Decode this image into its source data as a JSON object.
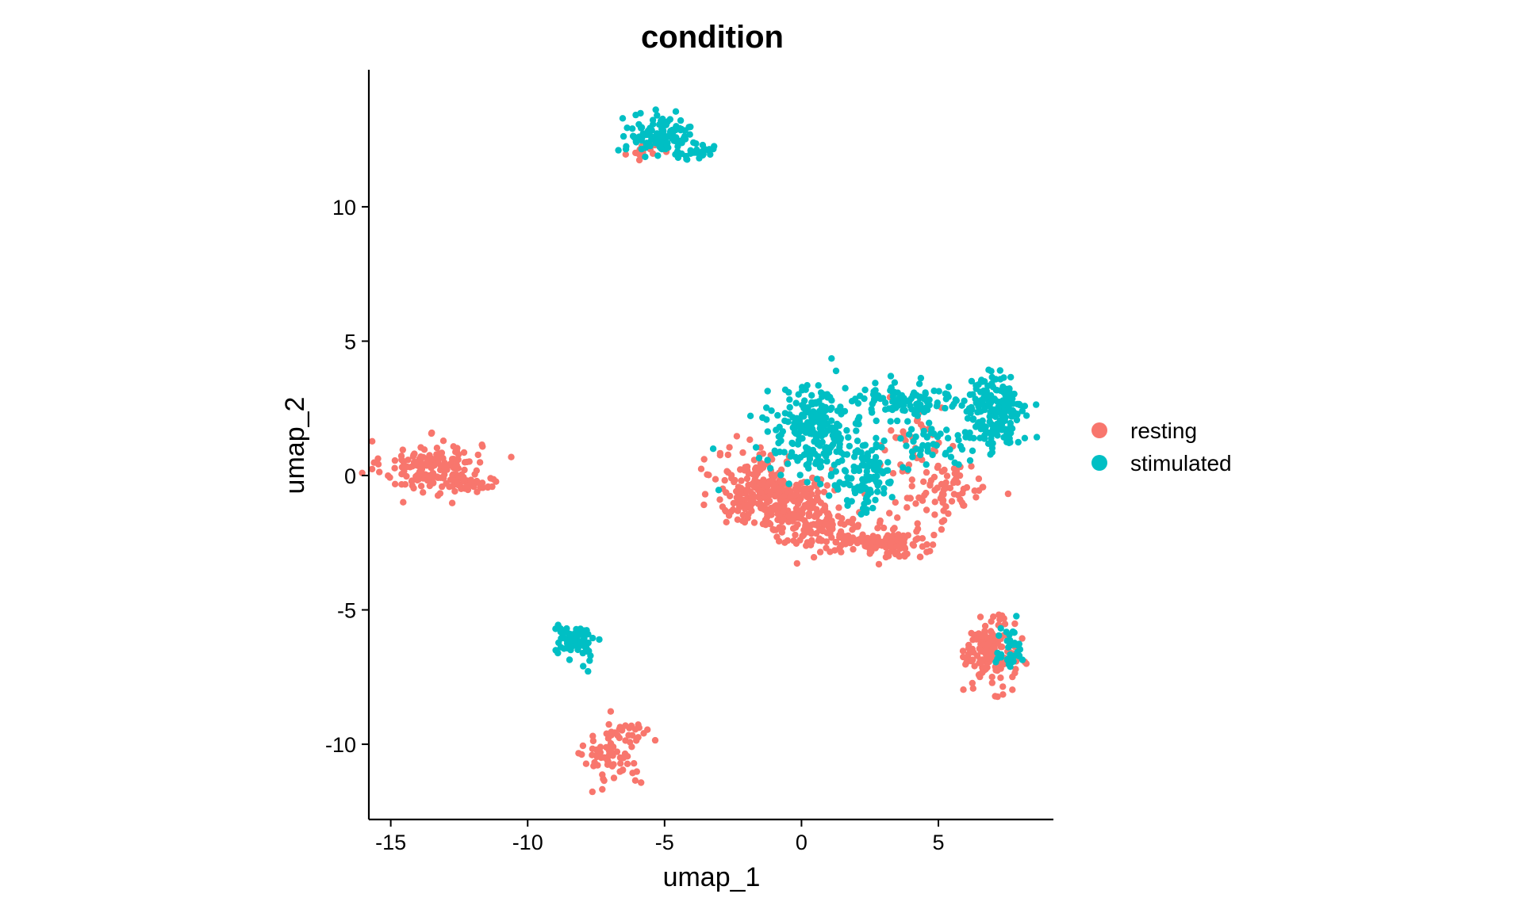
{
  "chart_data": {
    "type": "scatter",
    "title": "condition",
    "xlabel": "umap_1",
    "ylabel": "umap_2",
    "xlim": [
      -15.8,
      9.2
    ],
    "ylim": [
      -12.8,
      15.1
    ],
    "x_ticks": [
      -15,
      -10,
      -5,
      0,
      5
    ],
    "y_ticks": [
      -10,
      -5,
      0,
      5,
      10
    ],
    "x_tick_labels": [
      "-15",
      "-10",
      "-5",
      "0",
      "5"
    ],
    "y_tick_labels": [
      "-10",
      "-5",
      "0",
      "5",
      "10"
    ],
    "grid": false,
    "legend_position": "right",
    "legend": [
      {
        "name": "resting",
        "color": "#F8766D"
      },
      {
        "name": "stimulated",
        "color": "#00BFC4"
      }
    ],
    "series": [
      {
        "name": "resting",
        "color": "#F8766D",
        "clusters": [
          {
            "cx": -13.5,
            "cy": 0.3,
            "sx": 0.9,
            "sy": 0.5,
            "n": 170
          },
          {
            "cx": -12.0,
            "cy": -0.3,
            "sx": 0.5,
            "sy": 0.15,
            "n": 25
          },
          {
            "cx": -6.9,
            "cy": -10.4,
            "sx": 0.5,
            "sy": 0.6,
            "n": 70
          },
          {
            "cx": -6.0,
            "cy": -9.6,
            "sx": 0.3,
            "sy": 0.25,
            "n": 15
          },
          {
            "cx": -5.7,
            "cy": 12.0,
            "sx": 0.3,
            "sy": 0.15,
            "n": 15
          },
          {
            "cx": -1.5,
            "cy": -0.5,
            "sx": 0.8,
            "sy": 0.7,
            "n": 220
          },
          {
            "cx": 0.0,
            "cy": -1.3,
            "sx": 0.8,
            "sy": 0.6,
            "n": 170
          },
          {
            "cx": 2.0,
            "cy": -2.3,
            "sx": 1.0,
            "sy": 0.3,
            "n": 100
          },
          {
            "cx": 3.5,
            "cy": -2.6,
            "sx": 0.7,
            "sy": 0.25,
            "n": 60
          },
          {
            "cx": 5.2,
            "cy": -0.6,
            "sx": 0.9,
            "sy": 0.6,
            "n": 80
          },
          {
            "cx": 4.0,
            "cy": 1.2,
            "sx": 0.6,
            "sy": 0.7,
            "n": 30
          },
          {
            "cx": 6.9,
            "cy": -6.6,
            "sx": 0.45,
            "sy": 0.6,
            "n": 160
          }
        ]
      },
      {
        "name": "stimulated",
        "color": "#00BFC4",
        "clusters": [
          {
            "cx": -5.2,
            "cy": 12.7,
            "sx": 0.6,
            "sy": 0.35,
            "n": 120
          },
          {
            "cx": -3.8,
            "cy": 12.0,
            "sx": 0.4,
            "sy": 0.15,
            "n": 25
          },
          {
            "cx": -8.3,
            "cy": -6.1,
            "sx": 0.35,
            "sy": 0.25,
            "n": 75
          },
          {
            "cx": -7.9,
            "cy": -7.0,
            "sx": 0.1,
            "sy": 0.3,
            "n": 8
          },
          {
            "cx": 0.5,
            "cy": 1.7,
            "sx": 0.9,
            "sy": 0.8,
            "n": 240
          },
          {
            "cx": 2.3,
            "cy": 0.0,
            "sx": 0.6,
            "sy": 0.7,
            "n": 110
          },
          {
            "cx": 3.8,
            "cy": 2.8,
            "sx": 0.9,
            "sy": 0.35,
            "n": 90
          },
          {
            "cx": 4.6,
            "cy": 1.2,
            "sx": 0.7,
            "sy": 0.5,
            "n": 40
          },
          {
            "cx": 7.0,
            "cy": 2.3,
            "sx": 0.6,
            "sy": 0.75,
            "n": 200
          },
          {
            "cx": 7.5,
            "cy": -6.4,
            "sx": 0.35,
            "sy": 0.45,
            "n": 35
          }
        ]
      }
    ]
  }
}
